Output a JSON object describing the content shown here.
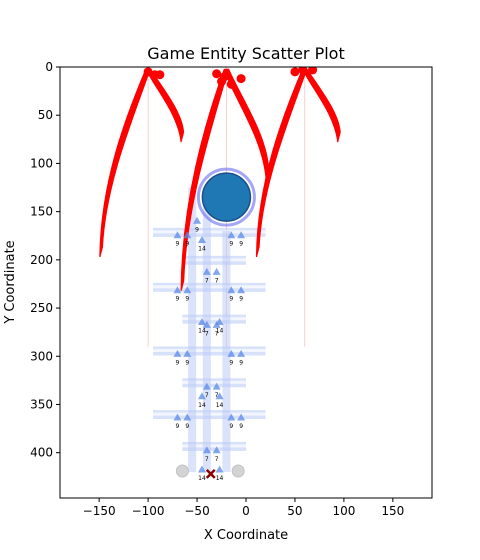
{
  "chart_data": {
    "type": "scatter",
    "title": "Game Entity Scatter Plot",
    "xlabel": "X Coordinate",
    "ylabel": "Y Coordinate",
    "xlim": [
      -190,
      190
    ],
    "ylim": [
      447,
      0
    ],
    "y_inverted": true,
    "xticks": [
      -150,
      -100,
      -50,
      0,
      50,
      100,
      150
    ],
    "yticks": [
      0,
      50,
      100,
      150,
      200,
      250,
      300,
      350,
      400
    ],
    "grid": false,
    "legend": "none",
    "colors": {
      "boss": "#1f77b4",
      "boss_ring": "#6a6af0",
      "tentacle": "#ff0000",
      "player_bullet": "#5b8ae6",
      "grid_highlight": "#b8c8f5",
      "spawn_marker": "#cccccc",
      "player": "#8b0000"
    },
    "boss": {
      "x": -20,
      "y": 135
    },
    "tentacle_bases": [
      {
        "x": -100,
        "y": 5
      },
      {
        "x": -20,
        "y": 5
      },
      {
        "x": 60,
        "y": 5
      }
    ],
    "tentacle_dots": [
      {
        "x": -100,
        "y": 5
      },
      {
        "x": -93,
        "y": 8
      },
      {
        "x": -88,
        "y": 8
      },
      {
        "x": -30,
        "y": 7
      },
      {
        "x": -22,
        "y": 10
      },
      {
        "x": -15,
        "y": 18
      },
      {
        "x": -5,
        "y": 12
      },
      {
        "x": -25,
        "y": 15
      },
      {
        "x": 50,
        "y": 5
      },
      {
        "x": 58,
        "y": 3
      },
      {
        "x": 68,
        "y": 3
      }
    ],
    "tentacle_arms": [
      {
        "base_x": -100,
        "side": "left",
        "tip": [
          -148,
          197
        ]
      },
      {
        "base_x": -100,
        "side": "right",
        "tip": [
          -65,
          78
        ]
      },
      {
        "base_x": -20,
        "side": "left",
        "tip": [
          -65,
          232
        ]
      },
      {
        "base_x": -20,
        "side": "right",
        "tip": [
          22,
          118
        ]
      },
      {
        "base_x": 60,
        "side": "left",
        "tip": [
          12,
          197
        ]
      },
      {
        "base_x": 60,
        "side": "right",
        "tip": [
          95,
          78
        ]
      }
    ],
    "grid_cells": [
      {
        "x": -50,
        "y": 160,
        "label": "9"
      },
      {
        "x": -70,
        "y": 175,
        "label": "9"
      },
      {
        "x": -60,
        "y": 175,
        "label": "9"
      },
      {
        "x": -15,
        "y": 175,
        "label": "9"
      },
      {
        "x": -5,
        "y": 175,
        "label": "9"
      },
      {
        "x": -45,
        "y": 180,
        "label": "14"
      },
      {
        "x": -40,
        "y": 213,
        "label": "7"
      },
      {
        "x": -30,
        "y": 213,
        "label": "7"
      },
      {
        "x": -70,
        "y": 232,
        "label": "9"
      },
      {
        "x": -60,
        "y": 232,
        "label": "9"
      },
      {
        "x": -15,
        "y": 232,
        "label": "9"
      },
      {
        "x": -5,
        "y": 232,
        "label": "9"
      },
      {
        "x": -45,
        "y": 265,
        "label": "14"
      },
      {
        "x": -27,
        "y": 265,
        "label": "14"
      },
      {
        "x": -40,
        "y": 268,
        "label": "7"
      },
      {
        "x": -30,
        "y": 268,
        "label": "7"
      },
      {
        "x": -70,
        "y": 298,
        "label": "9"
      },
      {
        "x": -60,
        "y": 298,
        "label": "9"
      },
      {
        "x": -15,
        "y": 298,
        "label": "9"
      },
      {
        "x": -5,
        "y": 298,
        "label": "9"
      },
      {
        "x": -40,
        "y": 332,
        "label": "7"
      },
      {
        "x": -30,
        "y": 332,
        "label": "7"
      },
      {
        "x": -45,
        "y": 342,
        "label": "14"
      },
      {
        "x": -27,
        "y": 342,
        "label": "14"
      },
      {
        "x": -70,
        "y": 364,
        "label": "9"
      },
      {
        "x": -60,
        "y": 364,
        "label": "9"
      },
      {
        "x": -15,
        "y": 364,
        "label": "9"
      },
      {
        "x": -5,
        "y": 364,
        "label": "9"
      },
      {
        "x": -40,
        "y": 398,
        "label": "7"
      },
      {
        "x": -30,
        "y": 398,
        "label": "7"
      },
      {
        "x": -45,
        "y": 418,
        "label": "14"
      },
      {
        "x": -27,
        "y": 418,
        "label": "14"
      }
    ],
    "grid_rows": [
      {
        "y": 171,
        "x0": -95,
        "x1": 20
      },
      {
        "y": 200,
        "x0": -65,
        "x1": 0
      },
      {
        "y": 228,
        "x0": -95,
        "x1": 20
      },
      {
        "y": 261,
        "x0": -65,
        "x1": 0
      },
      {
        "y": 294,
        "x0": -95,
        "x1": 20
      },
      {
        "y": 327,
        "x0": -65,
        "x1": 0
      },
      {
        "y": 360,
        "x0": -95,
        "x1": 20
      },
      {
        "y": 393,
        "x0": -65,
        "x1": 0
      }
    ],
    "grid_cols": [
      {
        "x": -55,
        "y0": 125,
        "y1": 420
      },
      {
        "x": -40,
        "y0": 125,
        "y1": 420
      },
      {
        "x": -20,
        "y0": 170,
        "y1": 420
      }
    ],
    "spawn_markers": [
      {
        "x": -65,
        "y": 419
      },
      {
        "x": -8,
        "y": 419
      }
    ],
    "player": {
      "x": -36,
      "y": 422
    },
    "vertical_guides": [
      -100,
      -20,
      60
    ]
  }
}
